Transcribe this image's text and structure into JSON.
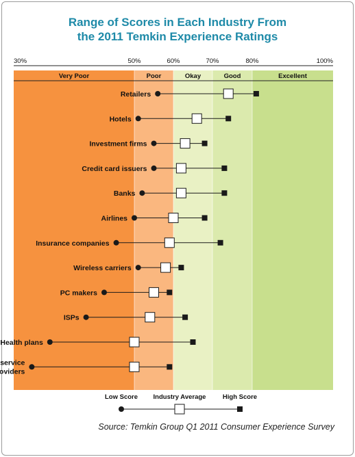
{
  "title": {
    "line1": "Range of Scores in Each Industry From",
    "line2": "the 2011 Temkin Experience Ratings"
  },
  "colors": {
    "very_poor": "#f6923f",
    "poor": "#fab77f",
    "okay": "#e9f1c4",
    "good": "#dbeaad",
    "excellent": "#c8df8d",
    "title": "#1e8aa8",
    "marker": "#1a1a1a"
  },
  "chart_data": {
    "type": "range-dot",
    "title": "Range of Scores in Each Industry From the 2011 Temkin Experience Ratings",
    "axis_ticks": [
      {
        "value": 30,
        "label": "30%"
      },
      {
        "value": 50,
        "label": "50%"
      },
      {
        "value": 60,
        "label": "60%"
      },
      {
        "value": 70,
        "label": "70%"
      },
      {
        "value": 80,
        "label": "80%"
      },
      {
        "value": 100,
        "label": "100%"
      }
    ],
    "xlim": [
      30,
      100
    ],
    "bands": [
      {
        "label": "Very Poor",
        "from": 30,
        "to": 50
      },
      {
        "label": "Poor",
        "from": 50,
        "to": 60
      },
      {
        "label": "Okay",
        "from": 60,
        "to": 70
      },
      {
        "label": "Good",
        "from": 70,
        "to": 80
      },
      {
        "label": "Excellent",
        "from": 80,
        "to": 100
      }
    ],
    "series_names": [
      "Low Score",
      "Industry Average",
      "High Score"
    ],
    "industries": [
      {
        "name": [
          "Retailers"
        ],
        "low": 56,
        "avg": 74,
        "high": 81
      },
      {
        "name": [
          "Hotels"
        ],
        "low": 51,
        "avg": 66,
        "high": 74
      },
      {
        "name": [
          "Investment firms"
        ],
        "low": 55,
        "avg": 63,
        "high": 68
      },
      {
        "name": [
          "Credit card issuers"
        ],
        "low": 55,
        "avg": 62,
        "high": 73
      },
      {
        "name": [
          "Banks"
        ],
        "low": 52,
        "avg": 62,
        "high": 73
      },
      {
        "name": [
          "Airlines"
        ],
        "low": 50,
        "avg": 60,
        "high": 68
      },
      {
        "name": [
          "Insurance companies"
        ],
        "low": 47,
        "avg": 59,
        "high": 72
      },
      {
        "name": [
          "Wireless carriers"
        ],
        "low": 51,
        "avg": 58,
        "high": 62
      },
      {
        "name": [
          "PC makers"
        ],
        "low": 45,
        "avg": 55,
        "high": 59
      },
      {
        "name": [
          "ISPs"
        ],
        "low": 42,
        "avg": 54,
        "high": 63
      },
      {
        "name": [
          "Health plans"
        ],
        "low": 36,
        "avg": 50,
        "high": 65
      },
      {
        "name": [
          "TV service",
          "providers"
        ],
        "low": 33,
        "avg": 50,
        "high": 59
      }
    ]
  },
  "legend": {
    "low_label": "Low Score",
    "avg_label": "Industry Average",
    "high_label": "High Score"
  },
  "source": "Source: Temkin Group Q1 2011 Consumer Experience Survey"
}
